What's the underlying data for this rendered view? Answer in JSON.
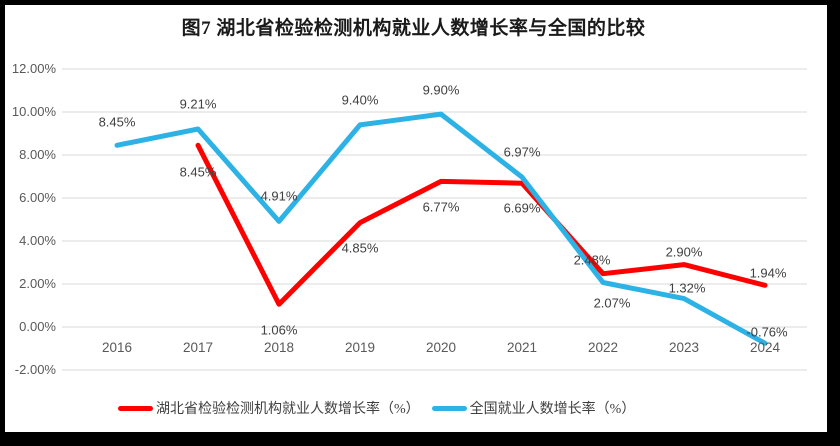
{
  "frame": {
    "border_color": "#000000",
    "background": "#ffffff"
  },
  "chart_data": {
    "type": "line",
    "title": "图7 湖北省检验检测机构就业人数增长率与全国的比较",
    "x_categories": [
      "2016",
      "2017",
      "2018",
      "2019",
      "2020",
      "2021",
      "2022",
      "2023",
      "2024"
    ],
    "ylim": [
      -2,
      12
    ],
    "ytick_values": [
      12,
      10,
      8,
      6,
      4,
      2,
      0,
      -2
    ],
    "ytick_labels": [
      "12.00%",
      "10.00%",
      "8.00%",
      "6.00%",
      "4.00%",
      "2.00%",
      "0.00%",
      "-2.00%"
    ],
    "grid": true,
    "grid_color": "#d9d9d9",
    "legend_position": "bottom",
    "series": [
      {
        "name": "湖北省检验检测机构就业人数增长率（%）",
        "color": "#fe0000",
        "points": [
          {
            "x": "2017",
            "value": 8.45,
            "label": "8.45%",
            "label_offset": [
              0,
              27
            ]
          },
          {
            "x": "2018",
            "value": 1.06,
            "label": "1.06%",
            "label_offset": [
              0,
              26
            ]
          },
          {
            "x": "2019",
            "value": 4.85,
            "label": "4.85%",
            "label_offset": [
              0,
              25
            ]
          },
          {
            "x": "2020",
            "value": 6.77,
            "label": "6.77%",
            "label_offset": [
              0,
              26
            ]
          },
          {
            "x": "2021",
            "value": 6.69,
            "label": "6.69%",
            "label_offset": [
              0,
              25
            ]
          },
          {
            "x": "2022",
            "value": 2.48,
            "label": "2.48%",
            "label_offset": [
              -11,
              -14
            ]
          },
          {
            "x": "2023",
            "value": 2.9,
            "label": "2.90%",
            "label_offset": [
              0,
              -13
            ]
          },
          {
            "x": "2024",
            "value": 1.94,
            "label": "1.94%",
            "label_offset": [
              3,
              -12
            ]
          }
        ]
      },
      {
        "name": "全国就业人数增长率（%）",
        "color": "#2db2e6",
        "points": [
          {
            "x": "2016",
            "value": 8.45,
            "label": "8.45%",
            "label_offset": [
              0,
              -23
            ]
          },
          {
            "x": "2017",
            "value": 9.21,
            "label": "9.21%",
            "label_offset": [
              0,
              -25
            ]
          },
          {
            "x": "2018",
            "value": 4.91,
            "label": "4.91%",
            "label_offset": [
              0,
              -25
            ]
          },
          {
            "x": "2019",
            "value": 9.4,
            "label": "9.40%",
            "label_offset": [
              0,
              -25
            ]
          },
          {
            "x": "2020",
            "value": 9.9,
            "label": "9.90%",
            "label_offset": [
              0,
              -24
            ]
          },
          {
            "x": "2021",
            "value": 6.97,
            "label": "6.97%",
            "label_offset": [
              0,
              -25
            ]
          },
          {
            "x": "2022",
            "value": 2.07,
            "label": "2.07%",
            "label_offset": [
              9,
              21
            ]
          },
          {
            "x": "2023",
            "value": 1.32,
            "label": "1.32%",
            "label_offset": [
              3,
              -11
            ]
          },
          {
            "x": "2024",
            "value": -0.76,
            "label": "-0.76%",
            "label_offset": [
              2,
              -11
            ]
          }
        ]
      }
    ]
  }
}
